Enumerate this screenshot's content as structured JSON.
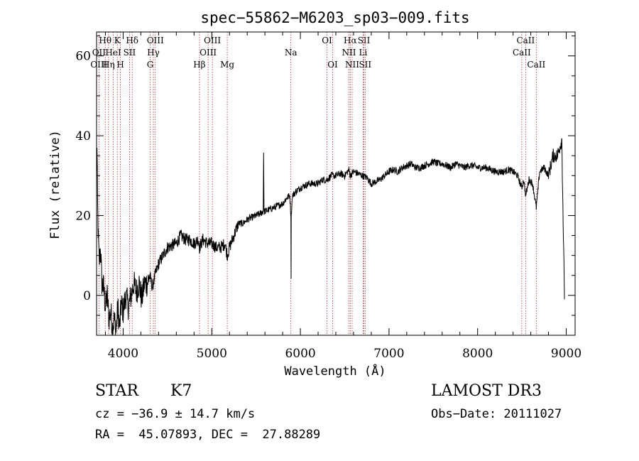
{
  "chart_data": {
    "type": "line",
    "title": "spec−55862−M6203_sp03−009.fits",
    "xlabel": "Wavelength (Å)",
    "ylabel": "Flux (relative)",
    "xlim": [
      3700,
      9100
    ],
    "ylim": [
      -10,
      66
    ],
    "xticks": [
      4000,
      5000,
      6000,
      7000,
      8000,
      9000
    ],
    "yticks": [
      0,
      20,
      40,
      60
    ],
    "series": [
      {
        "name": "spectrum",
        "anchors": [
          [
            3700,
            30
          ],
          [
            3705,
            36
          ],
          [
            3712,
            22
          ],
          [
            3720,
            14
          ],
          [
            3730,
            8
          ],
          [
            3745,
            12
          ],
          [
            3760,
            3
          ],
          [
            3780,
            2
          ],
          [
            3800,
            -3
          ],
          [
            3820,
            0
          ],
          [
            3840,
            -6
          ],
          [
            3860,
            -4
          ],
          [
            3880,
            -8
          ],
          [
            3900,
            -6
          ],
          [
            3920,
            -9
          ],
          [
            3940,
            -3
          ],
          [
            3960,
            -8
          ],
          [
            3980,
            -2
          ],
          [
            4000,
            -4
          ],
          [
            4030,
            0
          ],
          [
            4060,
            -3
          ],
          [
            4090,
            0
          ],
          [
            4120,
            3
          ],
          [
            4150,
            1
          ],
          [
            4180,
            3
          ],
          [
            4210,
            -1
          ],
          [
            4240,
            3
          ],
          [
            4270,
            3
          ],
          [
            4300,
            5
          ],
          [
            4330,
            2
          ],
          [
            4360,
            5
          ],
          [
            4400,
            8
          ],
          [
            4450,
            10
          ],
          [
            4500,
            12
          ],
          [
            4550,
            12.5
          ],
          [
            4600,
            13
          ],
          [
            4650,
            15
          ],
          [
            4700,
            14
          ],
          [
            4750,
            14
          ],
          [
            4800,
            13
          ],
          [
            4850,
            14
          ],
          [
            4861,
            12
          ],
          [
            4900,
            14
          ],
          [
            4950,
            13
          ],
          [
            5000,
            13
          ],
          [
            5050,
            12
          ],
          [
            5100,
            12
          ],
          [
            5150,
            13
          ],
          [
            5175,
            10
          ],
          [
            5200,
            12
          ],
          [
            5250,
            15
          ],
          [
            5300,
            18
          ],
          [
            5350,
            18
          ],
          [
            5400,
            19
          ],
          [
            5450,
            19.5
          ],
          [
            5500,
            20
          ],
          [
            5550,
            20.5
          ],
          [
            5580,
            21
          ],
          [
            5585,
            36
          ],
          [
            5590,
            21
          ],
          [
            5650,
            21.5
          ],
          [
            5700,
            22
          ],
          [
            5750,
            22.5
          ],
          [
            5800,
            23
          ],
          [
            5850,
            24.5
          ],
          [
            5880,
            25
          ],
          [
            5893,
            20
          ],
          [
            5895,
            5
          ],
          [
            5897,
            20
          ],
          [
            5910,
            25
          ],
          [
            5950,
            26
          ],
          [
            6000,
            27
          ],
          [
            6050,
            27.5
          ],
          [
            6100,
            28
          ],
          [
            6150,
            28
          ],
          [
            6200,
            28
          ],
          [
            6250,
            29
          ],
          [
            6300,
            29
          ],
          [
            6350,
            30
          ],
          [
            6400,
            30
          ],
          [
            6450,
            30.5
          ],
          [
            6500,
            30
          ],
          [
            6550,
            31.5
          ],
          [
            6562,
            30
          ],
          [
            6600,
            31
          ],
          [
            6650,
            30.5
          ],
          [
            6700,
            30
          ],
          [
            6750,
            29.5
          ],
          [
            6800,
            28
          ],
          [
            6850,
            28.5
          ],
          [
            6900,
            29
          ],
          [
            6950,
            30
          ],
          [
            7000,
            31
          ],
          [
            7050,
            31.5
          ],
          [
            7100,
            31
          ],
          [
            7150,
            32
          ],
          [
            7200,
            32.5
          ],
          [
            7250,
            33
          ],
          [
            7300,
            32
          ],
          [
            7350,
            32
          ],
          [
            7400,
            32.5
          ],
          [
            7450,
            33
          ],
          [
            7500,
            33.5
          ],
          [
            7550,
            33
          ],
          [
            7600,
            33
          ],
          [
            7650,
            32.5
          ],
          [
            7700,
            32
          ],
          [
            7750,
            33
          ],
          [
            7800,
            32.5
          ],
          [
            7850,
            32
          ],
          [
            7900,
            32.5
          ],
          [
            7950,
            32.5
          ],
          [
            8000,
            32
          ],
          [
            8050,
            32
          ],
          [
            8100,
            32
          ],
          [
            8150,
            31.5
          ],
          [
            8200,
            31
          ],
          [
            8250,
            31
          ],
          [
            8300,
            31
          ],
          [
            8350,
            31.5
          ],
          [
            8400,
            31
          ],
          [
            8450,
            30
          ],
          [
            8498,
            27
          ],
          [
            8520,
            29
          ],
          [
            8542,
            25
          ],
          [
            8580,
            29
          ],
          [
            8620,
            28
          ],
          [
            8662,
            22
          ],
          [
            8700,
            31
          ],
          [
            8750,
            32
          ],
          [
            8800,
            30
          ],
          [
            8850,
            35
          ],
          [
            8900,
            35
          ],
          [
            8950,
            39
          ],
          [
            8980,
            -1
          ]
        ]
      }
    ],
    "line_markers": [
      {
        "name": "Hθ",
        "wl": 3798,
        "row": 1
      },
      {
        "name": "OII",
        "wl": 3727,
        "row": 2
      },
      {
        "name": "OIII",
        "wl": 3727,
        "row": 3
      },
      {
        "name": "K",
        "wl": 3934,
        "row": 1
      },
      {
        "name": "HeI",
        "wl": 3889,
        "row": 2
      },
      {
        "name": "Hη",
        "wl": 3835,
        "row": 3
      },
      {
        "name": "SII",
        "wl": 4072,
        "row": 2
      },
      {
        "name": "H",
        "wl": 3969,
        "row": 3
      },
      {
        "name": "Hδ",
        "wl": 4102,
        "row": 1
      },
      {
        "name": "OIII",
        "wl": 4363,
        "row": 1
      },
      {
        "name": "Hγ",
        "wl": 4341,
        "row": 2
      },
      {
        "name": "G",
        "wl": 4305,
        "row": 3
      },
      {
        "name": "Hβ",
        "wl": 4861,
        "row": 3
      },
      {
        "name": "OIII",
        "wl": 5007,
        "row": 1
      },
      {
        "name": "OIII",
        "wl": 4959,
        "row": 2
      },
      {
        "name": "Mg",
        "wl": 5175,
        "row": 3
      },
      {
        "name": "Na",
        "wl": 5893,
        "row": 2
      },
      {
        "name": "OI",
        "wl": 6300,
        "row": 1
      },
      {
        "name": "OI",
        "wl": 6364,
        "row": 3
      },
      {
        "name": "Hα",
        "wl": 6563,
        "row": 1
      },
      {
        "name": "NII",
        "wl": 6548,
        "row": 2
      },
      {
        "name": "NII",
        "wl": 6584,
        "row": 3
      },
      {
        "name": "SII",
        "wl": 6717,
        "row": 1
      },
      {
        "name": "Li",
        "wl": 6708,
        "row": 2
      },
      {
        "name": "SII",
        "wl": 6731,
        "row": 3
      },
      {
        "name": "CaII",
        "wl": 8542,
        "row": 1
      },
      {
        "name": "CaII",
        "wl": 8498,
        "row": 2
      },
      {
        "name": "CaII",
        "wl": 8662,
        "row": 3
      }
    ]
  },
  "info": {
    "class_label": "STAR",
    "subclass_label": "K7",
    "cz": "cz = −36.9 ± 14.7 km/s",
    "radec": "RA =  45.07893, DEC =  27.88289",
    "survey": "LAMOST DR3",
    "obs_date": "Obs−Date: 20111027"
  }
}
